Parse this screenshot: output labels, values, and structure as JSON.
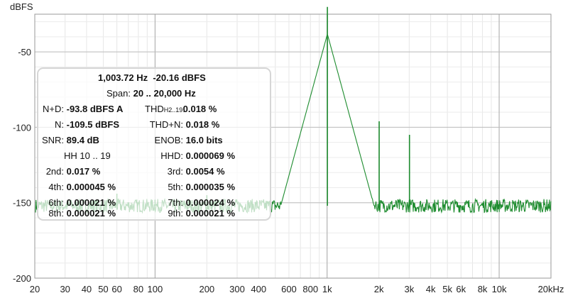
{
  "chart_data": {
    "type": "line",
    "ylabel": "dBFS",
    "x_scale": "log",
    "xlim": [
      20,
      20000
    ],
    "ylim": [
      -200,
      -25
    ],
    "x_ticks": [
      {
        "v": 20,
        "label": "20"
      },
      {
        "v": 30,
        "label": "30"
      },
      {
        "v": 40,
        "label": "40"
      },
      {
        "v": 50,
        "label": "50"
      },
      {
        "v": 60,
        "label": "60"
      },
      {
        "v": 80,
        "label": "80"
      },
      {
        "v": 100,
        "label": "100"
      },
      {
        "v": 200,
        "label": "200"
      },
      {
        "v": 300,
        "label": "300"
      },
      {
        "v": 400,
        "label": "400"
      },
      {
        "v": 600,
        "label": "600"
      },
      {
        "v": 800,
        "label": "800"
      },
      {
        "v": 1000,
        "label": "1k"
      },
      {
        "v": 2000,
        "label": "2k"
      },
      {
        "v": 3000,
        "label": "3k"
      },
      {
        "v": 4000,
        "label": "4k"
      },
      {
        "v": 5000,
        "label": "5k"
      },
      {
        "v": 6000,
        "label": "6k"
      },
      {
        "v": 8000,
        "label": "8k"
      },
      {
        "v": 10000,
        "label": "10k"
      },
      {
        "v": 20000,
        "label": "20kHz"
      }
    ],
    "y_ticks": [
      {
        "v": -50,
        "label": "-50"
      },
      {
        "v": -100,
        "label": "-100"
      },
      {
        "v": -150,
        "label": "-150"
      },
      {
        "v": -200,
        "label": "-200"
      }
    ],
    "grid": true,
    "series": [
      {
        "color": "#1e8c2f",
        "noise_floor_dbfs": -152,
        "points": [
          {
            "f": 60,
            "db": -144
          },
          {
            "f": 100,
            "db": -148
          },
          {
            "f": 200,
            "db": -145
          },
          {
            "f": 1003.72,
            "db": -20.16
          },
          {
            "f": 2007,
            "db": -96
          },
          {
            "f": 3011,
            "db": -105
          }
        ]
      }
    ]
  },
  "info": {
    "freq": "1,003.72 Hz",
    "level": "-20.16 dBFS",
    "span_label": "Span:",
    "span_value": "20 .. 20,000 Hz",
    "nd_label": "N+D:",
    "nd_value": "-93.8 dBFS A",
    "thd_label": "THD",
    "thd_sub": "H2..19",
    "thd_colon": ":",
    "thd_value": "0.018 %",
    "n_label": "N:",
    "n_value": "-109.5 dBFS",
    "thdn_label": "THD+N:",
    "thdn_value": "0.018 %",
    "snr_label": "SNR:",
    "snr_value": "89.4 dB",
    "enob_label": "ENOB:",
    "enob_value": "16.0 bits",
    "hh_label": "HH 10 .. 19",
    "hhd_label": "HHD:",
    "hhd_value": "0.000069 %",
    "h2_label": "2nd:",
    "h2_value": "0.017 %",
    "h3_label": "3rd:",
    "h3_value": "0.0054 %",
    "h4_label": "4th:",
    "h4_value": "0.000045 %",
    "h5_label": "5th:",
    "h5_value": "0.000035 %",
    "h6_label": "6th:",
    "h6_value": "0.000021 %",
    "h7_label": "7th:",
    "h7_value": "0.000024 %",
    "h8_label": "8th:",
    "h8_value": "0.000021 %",
    "h9_label": "9th:",
    "h9_value": "0.000021 %"
  }
}
